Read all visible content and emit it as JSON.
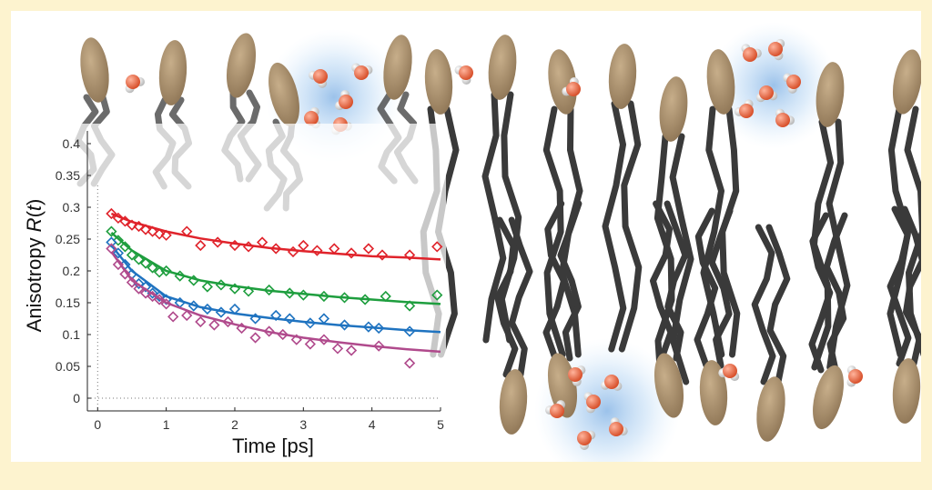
{
  "figure": {
    "background": "#fdf3cf",
    "headgroup_color": "#a88e6a",
    "tail_color": "#3a3a3a",
    "oxygen_color": "#ea6a45",
    "hydrogen_color": "#d9d9d9",
    "water_glow_color": "#6aa8e6"
  },
  "chart_data": {
    "type": "scatter",
    "xlabel": "Time [ps]",
    "ylabel_prefix": "Anisotropy ",
    "ylabel_italic": "R",
    "ylabel_suffix_open": "(",
    "ylabel_var": "t",
    "ylabel_suffix_close": ")",
    "xlim": [
      -0.15,
      5.0
    ],
    "ylim": [
      -0.02,
      0.42
    ],
    "x_ticks": [
      0,
      1,
      2,
      3,
      4,
      5
    ],
    "x_tick_labels": [
      "0",
      "1",
      "2",
      "3",
      "4",
      "5"
    ],
    "y_ticks": [
      0,
      0.05,
      0.1,
      0.15,
      0.2,
      0.25,
      0.3,
      0.35,
      0.4
    ],
    "y_tick_labels": [
      "0",
      "0.05",
      "0.1",
      "0.15",
      "0.2",
      "0.25",
      "0.3",
      "0.35",
      "0.4"
    ],
    "marker": "diamond",
    "series": [
      {
        "color": "#e0232b",
        "x": [
          0.2,
          0.3,
          0.4,
          0.5,
          0.6,
          0.7,
          0.8,
          0.9,
          1.0,
          1.3,
          1.5,
          1.75,
          2.0,
          2.2,
          2.4,
          2.6,
          2.85,
          3.0,
          3.2,
          3.45,
          3.7,
          3.95,
          4.15,
          4.55,
          4.95
        ],
        "y": [
          0.29,
          0.283,
          0.278,
          0.272,
          0.27,
          0.265,
          0.262,
          0.258,
          0.256,
          0.262,
          0.24,
          0.245,
          0.24,
          0.238,
          0.245,
          0.235,
          0.23,
          0.24,
          0.232,
          0.235,
          0.228,
          0.235,
          0.225,
          0.225,
          0.238
        ],
        "fit_x": [
          0.2,
          0.5,
          1.0,
          1.5,
          2.0,
          2.5,
          3.0,
          3.5,
          4.0,
          4.5,
          5.0
        ],
        "fit_y": [
          0.29,
          0.277,
          0.262,
          0.251,
          0.243,
          0.236,
          0.231,
          0.227,
          0.223,
          0.221,
          0.218
        ]
      },
      {
        "color": "#1e9e3e",
        "x": [
          0.2,
          0.3,
          0.4,
          0.5,
          0.6,
          0.7,
          0.8,
          0.9,
          1.0,
          1.2,
          1.4,
          1.6,
          1.8,
          2.0,
          2.2,
          2.5,
          2.8,
          3.0,
          3.3,
          3.6,
          3.9,
          4.2,
          4.55,
          4.95
        ],
        "y": [
          0.262,
          0.248,
          0.238,
          0.225,
          0.218,
          0.212,
          0.205,
          0.198,
          0.2,
          0.192,
          0.185,
          0.175,
          0.178,
          0.172,
          0.168,
          0.17,
          0.165,
          0.162,
          0.16,
          0.158,
          0.155,
          0.16,
          0.145,
          0.162
        ],
        "fit_x": [
          0.2,
          0.5,
          1.0,
          1.5,
          2.0,
          2.5,
          3.0,
          3.5,
          4.0,
          4.5,
          5.0
        ],
        "fit_y": [
          0.26,
          0.232,
          0.2,
          0.185,
          0.176,
          0.169,
          0.164,
          0.159,
          0.155,
          0.151,
          0.148
        ]
      },
      {
        "color": "#1f73c0",
        "x": [
          0.2,
          0.3,
          0.4,
          0.5,
          0.6,
          0.7,
          0.8,
          0.9,
          1.0,
          1.2,
          1.4,
          1.6,
          1.8,
          2.0,
          2.3,
          2.6,
          2.8,
          3.1,
          3.3,
          3.6,
          3.95,
          4.1,
          4.55
        ],
        "y": [
          0.245,
          0.228,
          0.21,
          0.195,
          0.18,
          0.175,
          0.165,
          0.16,
          0.155,
          0.15,
          0.145,
          0.14,
          0.135,
          0.14,
          0.125,
          0.13,
          0.125,
          0.118,
          0.125,
          0.115,
          0.112,
          0.11,
          0.105
        ],
        "fit_x": [
          0.2,
          0.5,
          1.0,
          1.5,
          2.0,
          2.5,
          3.0,
          3.5,
          4.0,
          4.5,
          5.0
        ],
        "fit_y": [
          0.24,
          0.2,
          0.16,
          0.143,
          0.133,
          0.126,
          0.12,
          0.115,
          0.111,
          0.107,
          0.104
        ]
      },
      {
        "color": "#b04a8c",
        "x": [
          0.2,
          0.3,
          0.4,
          0.5,
          0.6,
          0.7,
          0.8,
          0.9,
          1.0,
          1.1,
          1.3,
          1.5,
          1.7,
          1.9,
          2.1,
          2.3,
          2.5,
          2.7,
          2.9,
          3.1,
          3.3,
          3.5,
          3.7,
          4.1,
          4.55
        ],
        "y": [
          0.235,
          0.21,
          0.195,
          0.182,
          0.172,
          0.165,
          0.16,
          0.155,
          0.148,
          0.128,
          0.13,
          0.12,
          0.115,
          0.12,
          0.11,
          0.095,
          0.105,
          0.1,
          0.092,
          0.085,
          0.092,
          0.078,
          0.075,
          0.082,
          0.055
        ],
        "fit_x": [
          0.2,
          0.5,
          1.0,
          1.5,
          2.0,
          2.5,
          3.0,
          3.5,
          4.0,
          4.5,
          5.0
        ],
        "fit_y": [
          0.23,
          0.185,
          0.15,
          0.13,
          0.116,
          0.104,
          0.095,
          0.088,
          0.082,
          0.077,
          0.073
        ]
      }
    ]
  }
}
